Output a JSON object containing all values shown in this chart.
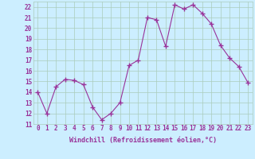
{
  "x": [
    0,
    1,
    2,
    3,
    4,
    5,
    6,
    7,
    8,
    9,
    10,
    11,
    12,
    13,
    14,
    15,
    16,
    17,
    18,
    19,
    20,
    21,
    22,
    23
  ],
  "y": [
    14.0,
    12.0,
    14.5,
    15.2,
    15.1,
    14.7,
    12.6,
    11.4,
    12.0,
    13.0,
    16.5,
    17.0,
    21.0,
    20.8,
    18.3,
    22.2,
    21.8,
    22.2,
    21.4,
    20.4,
    18.4,
    17.2,
    16.4,
    14.9
  ],
  "line_color": "#993399",
  "marker_color": "#993399",
  "bg_color": "#cceeff",
  "grid_color": "#aaccbb",
  "xlabel": "Windchill (Refroidissement éolien,°C)",
  "xlabel_color": "#993399",
  "ylim": [
    11,
    22.5
  ],
  "yticks": [
    11,
    12,
    13,
    14,
    15,
    16,
    17,
    18,
    19,
    20,
    21,
    22
  ],
  "xtick_labels": [
    "0",
    "1",
    "2",
    "3",
    "4",
    "5",
    "6",
    "7",
    "8",
    "9",
    "10",
    "11",
    "12",
    "13",
    "14",
    "15",
    "16",
    "17",
    "18",
    "19",
    "20",
    "21",
    "22",
    "23"
  ],
  "font_family": "monospace",
  "tick_fontsize": 5.5,
  "xlabel_fontsize": 6.0
}
